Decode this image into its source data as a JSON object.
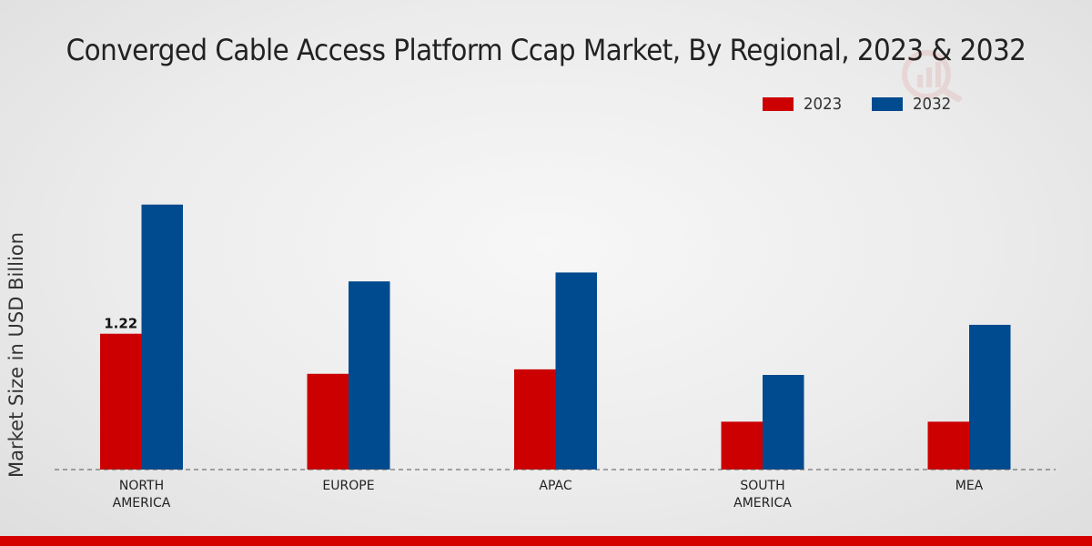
{
  "colors": {
    "series_2023": "#cc0000",
    "series_2032": "#004a8f",
    "footer": "#d40000"
  },
  "chart_data": {
    "type": "bar",
    "title": "Converged Cable Access Platform Ccap Market, By Regional, 2023 & 2032",
    "xlabel": "",
    "ylabel": "Market Size in USD Billion",
    "categories": [
      [
        "NORTH",
        "AMERICA"
      ],
      [
        "EUROPE"
      ],
      [
        "APAC"
      ],
      [
        "SOUTH",
        "AMERICA"
      ],
      [
        "MEA"
      ]
    ],
    "series": [
      {
        "name": "2023",
        "color": "#cc0000",
        "values": [
          1.22,
          0.86,
          0.9,
          0.43,
          0.43
        ]
      },
      {
        "name": "2032",
        "color": "#004a8f",
        "values": [
          2.38,
          1.69,
          1.77,
          0.85,
          1.3
        ]
      }
    ],
    "data_labels": [
      {
        "series": 0,
        "index": 0,
        "text": "1.22"
      }
    ],
    "ylim": [
      0,
      3.4
    ],
    "legend_position": "top-right",
    "grid": false
  }
}
